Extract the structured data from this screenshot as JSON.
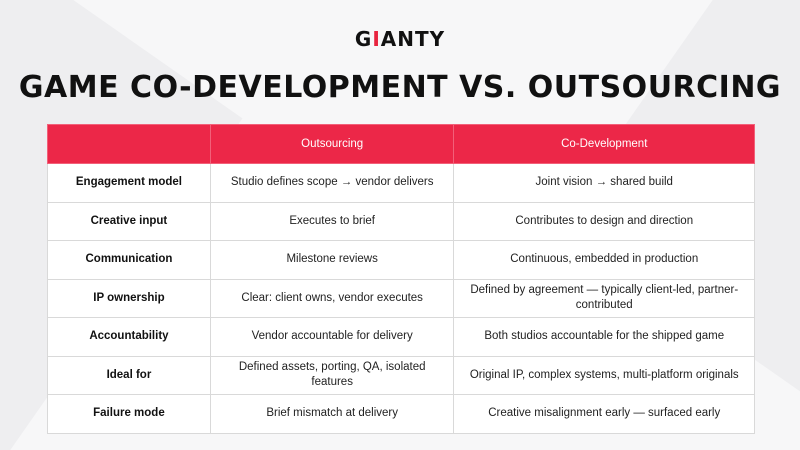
{
  "logo": {
    "text_before": "G",
    "accent": "I",
    "text_after": "ANTY"
  },
  "title": "GAME CO-DEVELOPMENT VS. OUTSOURCING",
  "colors": {
    "accent": "#ec2748",
    "text": "#111111",
    "background": "#f7f7f8"
  },
  "table": {
    "headers": [
      "",
      "Outsourcing",
      "Co-Development"
    ],
    "rows": [
      [
        "Engagement model",
        "Studio defines scope → vendor delivers",
        "Joint vision → shared build"
      ],
      [
        "Creative input",
        "Executes to brief",
        "Contributes to design and direction"
      ],
      [
        "Communication",
        "Milestone reviews",
        "Continuous, embedded in production"
      ],
      [
        "IP ownership",
        "Clear: client owns, vendor executes",
        "Defined by agreement — typically client-led, partner-contributed"
      ],
      [
        "Accountability",
        "Vendor accountable for delivery",
        "Both studios accountable for the shipped game"
      ],
      [
        "Ideal for",
        "Defined assets, porting, QA, isolated features",
        "Original IP, complex systems, multi-platform originals"
      ],
      [
        "Failure mode",
        "Brief mismatch at delivery",
        "Creative misalignment early — surfaced early"
      ]
    ]
  }
}
